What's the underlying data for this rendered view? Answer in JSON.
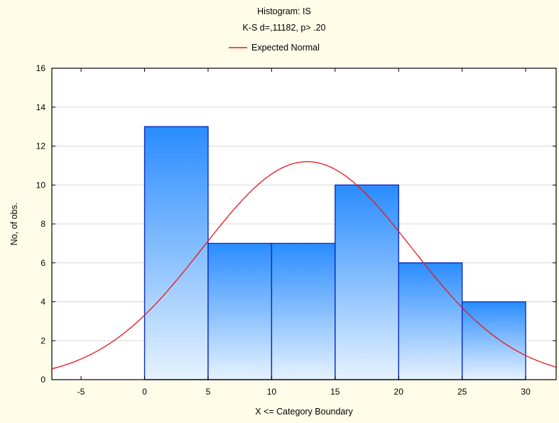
{
  "chart_data": {
    "type": "bar",
    "title": "Histogram: IS",
    "subtitle": "K-S d=,11182, p> .20",
    "legend": {
      "label": "Expected Normal",
      "placement": "top-center"
    },
    "xlabel": "X <= Category Boundary",
    "ylabel": "No, of obs.",
    "xlim": [
      -7.3,
      32.4
    ],
    "ylim": [
      0,
      16
    ],
    "x_ticks": [
      "-5",
      "0",
      "5",
      "10",
      "15",
      "20",
      "25",
      "30"
    ],
    "y_ticks": [
      "0",
      "2",
      "4",
      "6",
      "8",
      "10",
      "12",
      "14",
      "16"
    ],
    "grid": true,
    "bins": [
      {
        "from": 0,
        "to": 5,
        "count": 13
      },
      {
        "from": 5,
        "to": 10,
        "count": 7
      },
      {
        "from": 10,
        "to": 15,
        "count": 7
      },
      {
        "from": 15,
        "to": 20,
        "count": 10
      },
      {
        "from": 20,
        "to": 25,
        "count": 6
      },
      {
        "from": 25,
        "to": 30,
        "count": 4
      }
    ],
    "expected_normal": {
      "mean": 12.8,
      "sd": 8.2,
      "peak": 11.2
    },
    "colors": {
      "bar_top": "#2a8cff",
      "bar_bottom": "#e6f2ff",
      "bar_stroke": "#0a2dc2",
      "curve": "#e8161a",
      "grid": "#d8d8d8",
      "background": "#fffde8",
      "plot_background": "#ffffff"
    }
  }
}
